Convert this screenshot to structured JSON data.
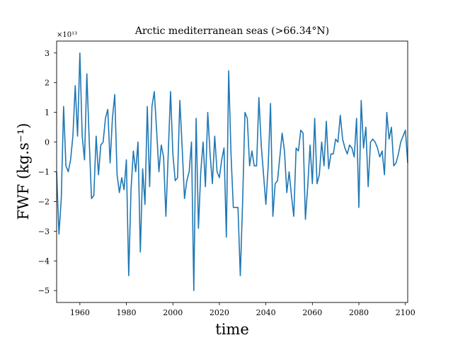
{
  "chart_data": {
    "type": "line",
    "title": "Arctic mediterranean seas (>66.34°N)",
    "xlabel": "time",
    "ylabel": "FWF (kg.s⁻¹)",
    "y_multiplier": "×10¹³",
    "xlim": [
      1950,
      2101
    ],
    "ylim": [
      -5.4,
      3.4
    ],
    "x_ticks": [
      1960,
      1980,
      2000,
      2020,
      2040,
      2060,
      2080,
      2100
    ],
    "y_ticks": [
      -5,
      -4,
      -3,
      -2,
      -1,
      0,
      1,
      2,
      3
    ],
    "grid": false,
    "line_color": "#1f77b4",
    "series": [
      {
        "x": [
          1950,
          1951,
          1952,
          1953,
          1954,
          1955,
          1956,
          1957,
          1958,
          1959,
          1960,
          1961,
          1962,
          1963,
          1964,
          1965,
          1966,
          1967,
          1968,
          1969,
          1970,
          1971,
          1972,
          1973,
          1974,
          1975,
          1976,
          1977,
          1978,
          1979,
          1980,
          1981,
          1982,
          1983,
          1984,
          1985,
          1986,
          1987,
          1988,
          1989,
          1990,
          1991,
          1992,
          1993,
          1994,
          1995,
          1996,
          1997,
          1998,
          1999,
          2000,
          2001,
          2002,
          2003,
          2004,
          2005,
          2006,
          2007,
          2008,
          2009,
          2010,
          2011,
          2012,
          2013,
          2014,
          2015,
          2016,
          2017,
          2018,
          2019,
          2020,
          2021,
          2022,
          2023,
          2024,
          2025,
          2026,
          2027,
          2028,
          2029,
          2030,
          2031,
          2032,
          2033,
          2034,
          2035,
          2036,
          2037,
          2038,
          2039,
          2040,
          2041,
          2042,
          2043,
          2044,
          2045,
          2046,
          2047,
          2048,
          2049,
          2050,
          2051,
          2052,
          2053,
          2054,
          2055,
          2056,
          2057,
          2058,
          2059,
          2060,
          2061,
          2062,
          2063,
          2064,
          2065,
          2066,
          2067,
          2068,
          2069,
          2070,
          2071,
          2072,
          2073,
          2074,
          2075,
          2076,
          2077,
          2078,
          2079,
          2080,
          2081,
          2082,
          2083,
          2084,
          2085,
          2086,
          2087,
          2088,
          2089,
          2090,
          2091,
          2092,
          2093,
          2094,
          2095,
          2096,
          2097,
          2098,
          2099,
          2100,
          2101
        ],
        "values": [
          -1.0,
          -3.1,
          -1.9,
          1.2,
          -0.8,
          -1.0,
          -0.6,
          0.2,
          1.9,
          0.2,
          3.0,
          0.2,
          -0.6,
          2.3,
          0.1,
          -1.9,
          -1.8,
          0.2,
          -1.1,
          -0.1,
          0.0,
          0.8,
          1.1,
          -0.7,
          0.8,
          1.6,
          -1.1,
          -1.7,
          -1.2,
          -1.6,
          -0.6,
          -4.5,
          -1.6,
          -0.3,
          -1.0,
          0.0,
          -3.7,
          -0.9,
          -2.1,
          1.2,
          -1.5,
          1.2,
          1.7,
          0.4,
          -1.0,
          -0.1,
          -0.5,
          -2.5,
          -0.4,
          1.7,
          -0.4,
          -1.3,
          -1.2,
          1.4,
          -0.2,
          -1.9,
          -1.3,
          -1.0,
          0.0,
          -5.0,
          0.8,
          -2.9,
          -1.0,
          0.0,
          -1.5,
          1.0,
          -0.4,
          -1.4,
          0.2,
          -1.0,
          -1.2,
          -0.6,
          -0.2,
          -3.2,
          2.4,
          -0.4,
          -2.2,
          -2.2,
          -2.2,
          -4.5,
          -2.0,
          1.0,
          0.8,
          -0.8,
          -0.3,
          -0.8,
          -0.8,
          1.5,
          -0.1,
          -1.1,
          -2.1,
          -0.8,
          1.3,
          -2.5,
          -1.4,
          -1.3,
          -0.5,
          0.3,
          -0.3,
          -1.7,
          -1.0,
          -1.8,
          -2.5,
          -0.2,
          -0.3,
          0.4,
          0.3,
          -2.6,
          -1.5,
          -0.1,
          -1.4,
          0.8,
          -1.4,
          -1.1,
          0.0,
          -0.8,
          0.7,
          -0.9,
          -0.4,
          -0.4,
          0.1,
          0.0,
          0.9,
          0.1,
          -0.2,
          -0.4,
          -0.1,
          -0.2,
          -0.5,
          0.8,
          -2.2,
          1.4,
          -0.2,
          0.5,
          -1.5,
          0.0,
          0.1,
          0.0,
          -0.2,
          -0.5,
          -0.3,
          -1.1,
          1.0,
          0.1,
          0.5,
          -0.8,
          -0.7,
          -0.4,
          0.0,
          0.2,
          0.4,
          -0.7
        ]
      }
    ]
  }
}
